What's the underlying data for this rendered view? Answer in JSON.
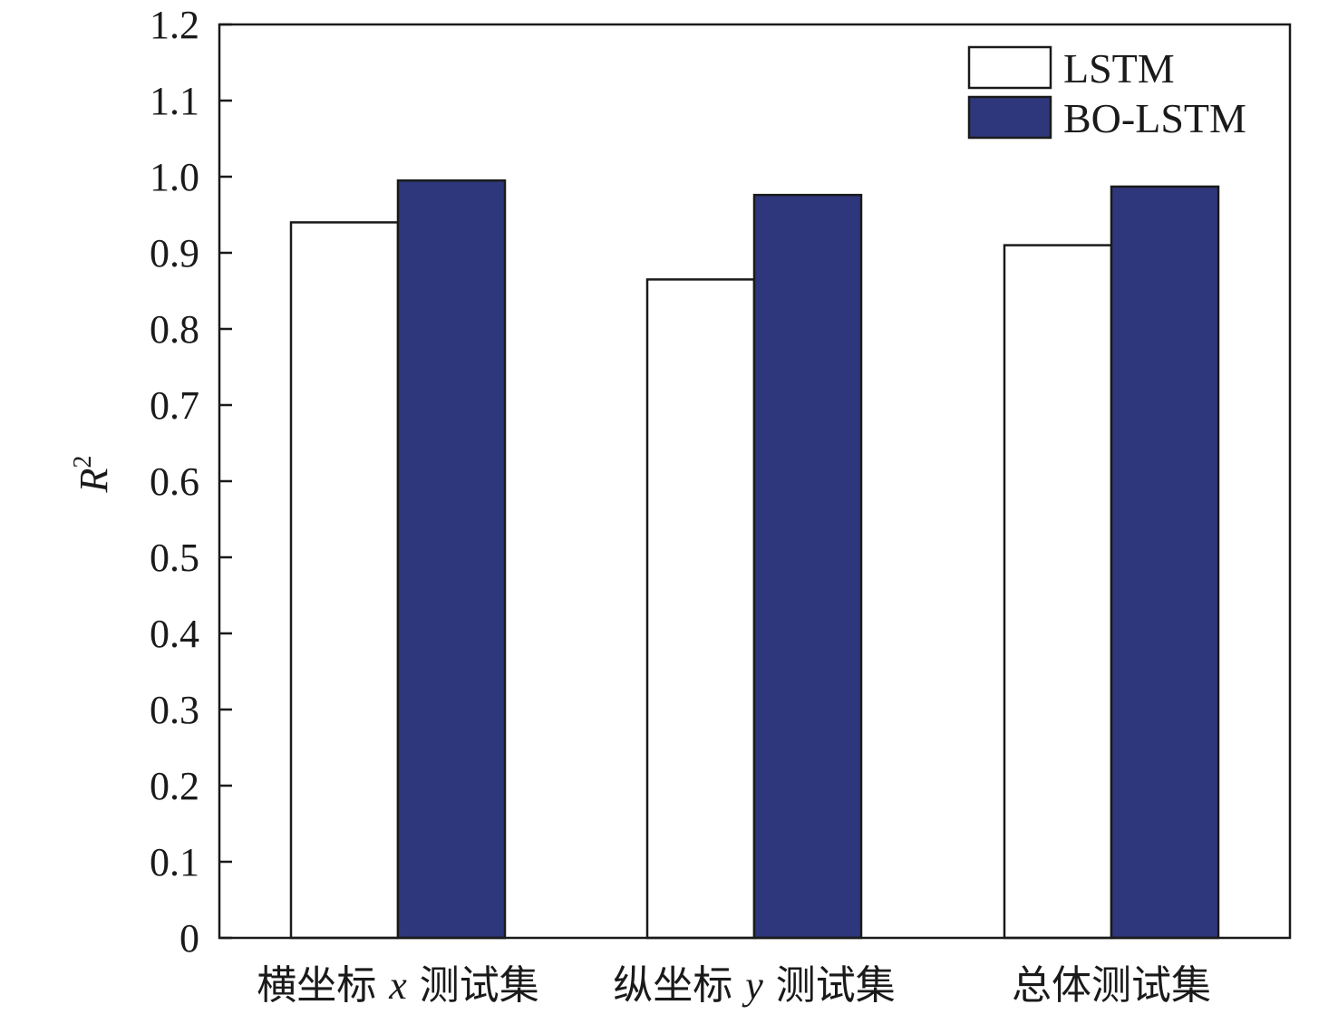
{
  "chart_data": {
    "type": "bar",
    "categories": [
      {
        "pre": "横坐标 ",
        "var": "x",
        "post": " 测试集"
      },
      {
        "pre": "纵坐标 ",
        "var": "y",
        "post": " 测试集"
      },
      {
        "pre": "总体测试集",
        "var": "",
        "post": ""
      }
    ],
    "series": [
      {
        "name": "LSTM",
        "color": "#ffffff",
        "values": [
          0.94,
          0.865,
          0.91
        ]
      },
      {
        "name": "BO-LSTM",
        "color": "#2e377c",
        "values": [
          0.995,
          0.976,
          0.987
        ]
      }
    ],
    "ylabel": {
      "base": "R",
      "sup": "2"
    },
    "ylim": [
      0,
      1.2
    ],
    "yticks": [
      "0",
      "0.1",
      "0.2",
      "0.3",
      "0.4",
      "0.5",
      "0.6",
      "0.7",
      "0.8",
      "0.9",
      "1.0",
      "1.1",
      "1.2"
    ],
    "grid": false,
    "legend_position": "top-right"
  }
}
